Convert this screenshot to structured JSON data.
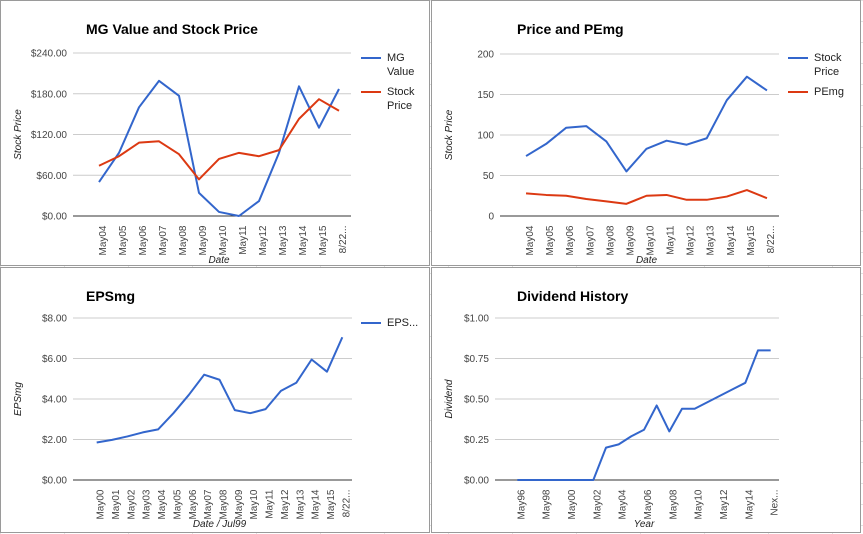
{
  "chart_data": [
    {
      "type": "line",
      "title": "MG Value and Stock Price",
      "y_label": "Stock Price",
      "x_label": "Date",
      "categories": [
        "May04",
        "May05",
        "May06",
        "May07",
        "May08",
        "May09",
        "May10",
        "May11",
        "May12",
        "May13",
        "May14",
        "May15",
        "8/22..."
      ],
      "series": [
        {
          "name": "MG Value",
          "color": "#3366cc",
          "values": [
            50,
            93,
            160,
            199,
            177,
            34,
            6,
            0,
            22,
            93,
            191,
            130,
            187
          ]
        },
        {
          "name": "Stock Price",
          "color": "#dc3912",
          "values": [
            74,
            88,
            108,
            110,
            91,
            54,
            84,
            93,
            88,
            97,
            143,
            172,
            155
          ]
        }
      ],
      "ylim": [
        0,
        240
      ],
      "yticks": [
        {
          "value": 0,
          "label": "$0.00"
        },
        {
          "value": 60,
          "label": "$60.00"
        },
        {
          "value": 120,
          "label": "$120.00"
        },
        {
          "value": 180,
          "label": "$180.00"
        },
        {
          "value": 240,
          "label": "$240.00"
        }
      ],
      "grid": true,
      "legend": "right"
    },
    {
      "type": "line",
      "title": "Price and PEmg",
      "y_label": "Stock Price",
      "x_label": "Date",
      "categories": [
        "May04",
        "May05",
        "May06",
        "May07",
        "May08",
        "May09",
        "May10",
        "May11",
        "May12",
        "May13",
        "May14",
        "May15",
        "8/22..."
      ],
      "series": [
        {
          "name": "Stock Price",
          "color": "#3366cc",
          "values": [
            74,
            89,
            109,
            111,
            92,
            55,
            83,
            93,
            88,
            96,
            143,
            172,
            155
          ]
        },
        {
          "name": "PEmg",
          "color": "#dc3912",
          "values": [
            28,
            26,
            25,
            21,
            18,
            15,
            25,
            26,
            20,
            20,
            24,
            32,
            22
          ]
        }
      ],
      "ylim": [
        0,
        200
      ],
      "yticks": [
        0,
        50,
        100,
        150,
        200
      ],
      "grid": true,
      "legend": "right"
    },
    {
      "type": "line",
      "title": "EPSmg",
      "y_label": "EPSmg",
      "x_label": "Date / Jul99",
      "categories": [
        "May00",
        "May01",
        "May02",
        "May03",
        "May04",
        "May05",
        "May06",
        "May07",
        "May08",
        "May09",
        "May10",
        "May11",
        "May12",
        "May13",
        "May14",
        "May15",
        "8/22..."
      ],
      "series": [
        {
          "name": "EPS...",
          "color": "#3366cc",
          "values": [
            1.85,
            1.98,
            2.15,
            2.35,
            2.5,
            3.3,
            4.2,
            5.2,
            4.95,
            3.45,
            3.3,
            3.5,
            4.4,
            4.8,
            5.95,
            5.35,
            7.05
          ]
        }
      ],
      "ylim": [
        0,
        8
      ],
      "yticks": [
        {
          "value": 0,
          "label": "$0.00"
        },
        {
          "value": 2,
          "label": "$2.00"
        },
        {
          "value": 4,
          "label": "$4.00"
        },
        {
          "value": 6,
          "label": "$6.00"
        },
        {
          "value": 8,
          "label": "$8.00"
        }
      ],
      "grid": true,
      "legend": "right"
    },
    {
      "type": "line",
      "title": "Dividend History",
      "y_label": "Dividend",
      "x_label": "Year",
      "categories": [
        "May96",
        null,
        "May98",
        null,
        "May00",
        null,
        "May02",
        null,
        "May04",
        null,
        "May06",
        null,
        "May08",
        null,
        "May10",
        null,
        "May12",
        null,
        "May14",
        null,
        "Nex..."
      ],
      "color": "#3366cc",
      "values": [
        0,
        0,
        0,
        0,
        0,
        0,
        0,
        0.2,
        0.22,
        0.27,
        0.31,
        0.46,
        0.3,
        0.44,
        0.44,
        0.48,
        0.52,
        0.56,
        0.6,
        0.8,
        0.8
      ],
      "ylim": [
        0,
        1
      ],
      "yticks": [
        {
          "value": 0,
          "label": "$0.00"
        },
        {
          "value": 0.25,
          "label": "$0.25"
        },
        {
          "value": 0.5,
          "label": "$0.50"
        },
        {
          "value": 0.75,
          "label": "$0.75"
        },
        {
          "value": 1,
          "label": "$1.00"
        }
      ],
      "grid": true
    }
  ]
}
